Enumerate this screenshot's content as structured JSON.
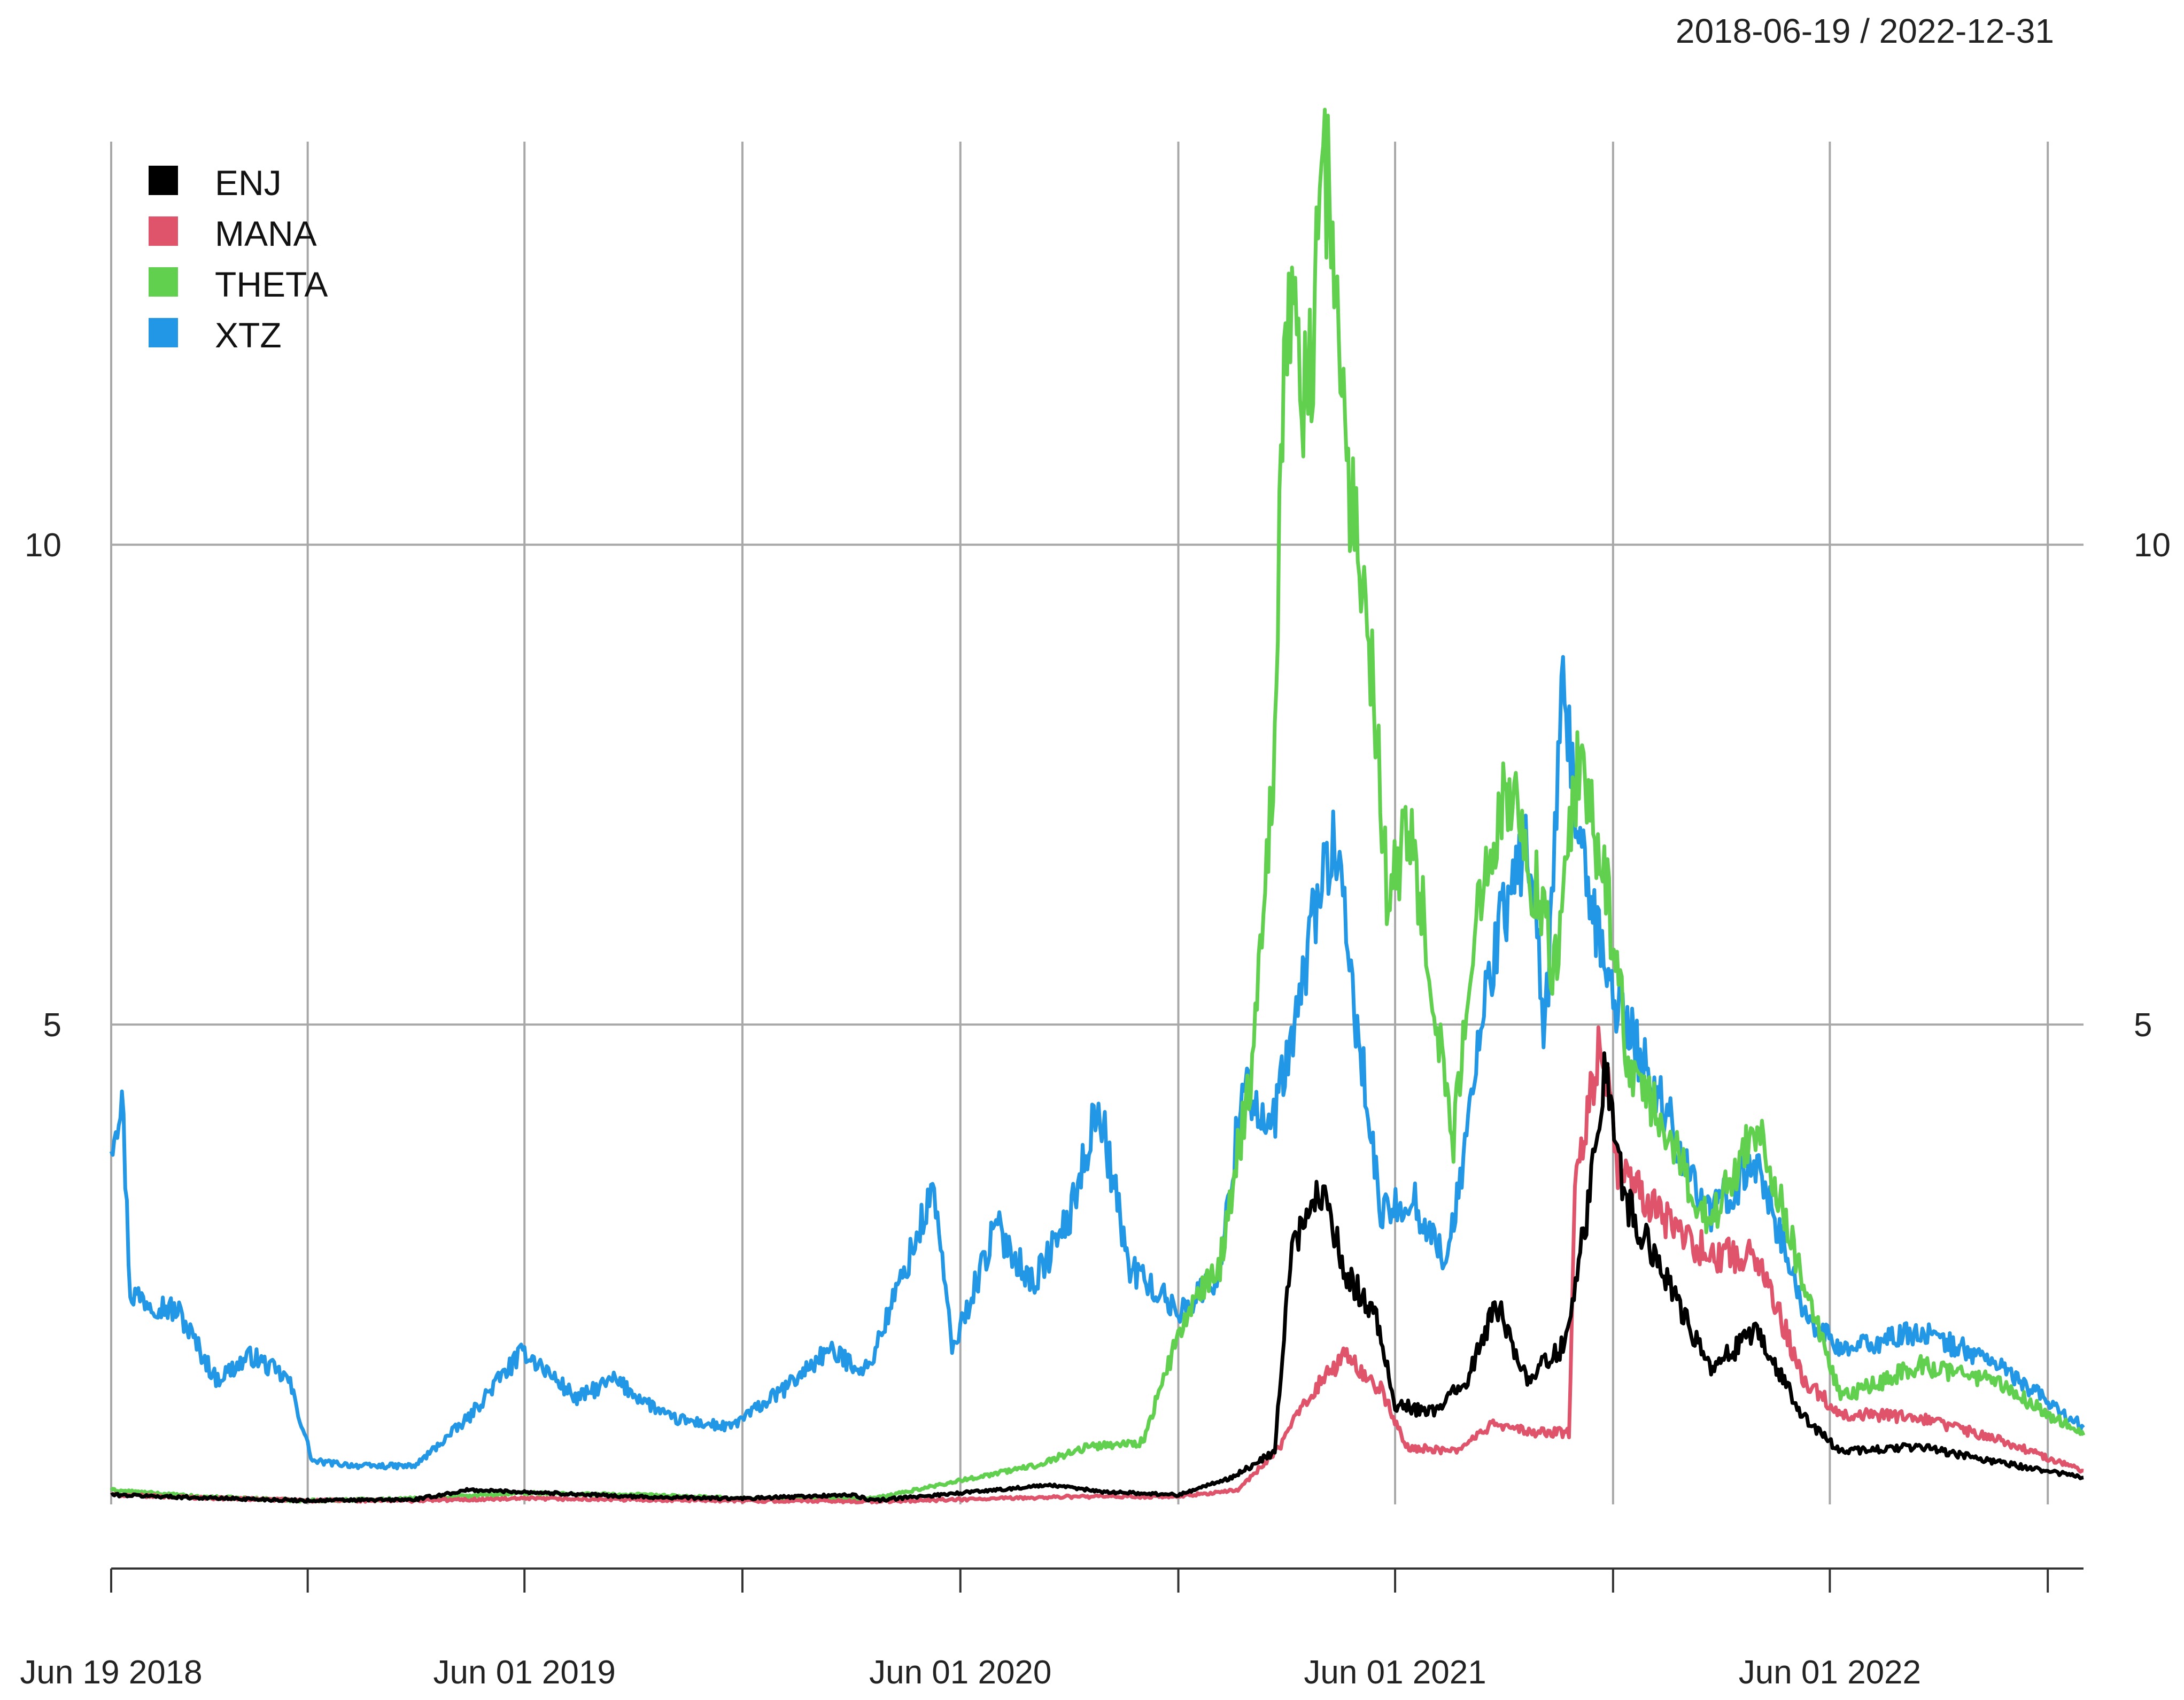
{
  "chart_data": {
    "type": "line",
    "title": "",
    "date_range": "2018-06-19 / 2022-12-31",
    "x_ticks": [
      "Jun 19 2018",
      "Jun 01 2019",
      "Jun 01 2020",
      "Jun 01 2021",
      "Jun 01 2022"
    ],
    "y_ticks": [
      "5",
      "10"
    ],
    "ylim": [
      0,
      14.2
    ],
    "xlim": [
      "2018-06-19",
      "2022-12-31"
    ],
    "grid": true,
    "legend_position": "top-left",
    "series": [
      {
        "name": "ENJ",
        "color": "#000000",
        "points": [
          [
            "2018-06-19",
            0.1
          ],
          [
            "2018-09-01",
            0.07
          ],
          [
            "2018-12-01",
            0.04
          ],
          [
            "2019-03-01",
            0.05
          ],
          [
            "2019-04-15",
            0.15
          ],
          [
            "2019-06-01",
            0.13
          ],
          [
            "2019-09-01",
            0.08
          ],
          [
            "2019-12-01",
            0.06
          ],
          [
            "2020-03-01",
            0.1
          ],
          [
            "2020-03-20",
            0.04
          ],
          [
            "2020-06-01",
            0.12
          ],
          [
            "2020-08-15",
            0.2
          ],
          [
            "2020-10-01",
            0.13
          ],
          [
            "2020-12-01",
            0.1
          ],
          [
            "2021-01-15",
            0.28
          ],
          [
            "2021-02-20",
            0.55
          ],
          [
            "2021-03-05",
            2.6
          ],
          [
            "2021-03-20",
            3.05
          ],
          [
            "2021-04-03",
            3.3
          ],
          [
            "2021-04-20",
            2.4
          ],
          [
            "2021-05-15",
            2.0
          ],
          [
            "2021-06-01",
            1.05
          ],
          [
            "2021-07-01",
            0.95
          ],
          [
            "2021-08-01",
            1.3
          ],
          [
            "2021-08-25",
            2.1
          ],
          [
            "2021-09-20",
            1.3
          ],
          [
            "2021-10-20",
            1.65
          ],
          [
            "2021-11-10",
            3.1
          ],
          [
            "2021-11-25",
            4.6
          ],
          [
            "2021-12-10",
            3.2
          ],
          [
            "2022-01-10",
            2.5
          ],
          [
            "2022-02-20",
            1.4
          ],
          [
            "2022-04-01",
            1.8
          ],
          [
            "2022-05-10",
            0.9
          ],
          [
            "2022-06-10",
            0.55
          ],
          [
            "2022-08-15",
            0.6
          ],
          [
            "2022-10-15",
            0.45
          ],
          [
            "2022-12-31",
            0.28
          ]
        ]
      },
      {
        "name": "MANA",
        "color": "#df536b",
        "points": [
          [
            "2018-06-19",
            0.1
          ],
          [
            "2018-09-01",
            0.07
          ],
          [
            "2018-12-01",
            0.04
          ],
          [
            "2019-03-01",
            0.04
          ],
          [
            "2019-06-01",
            0.06
          ],
          [
            "2019-12-01",
            0.04
          ],
          [
            "2020-03-20",
            0.03
          ],
          [
            "2020-06-01",
            0.05
          ],
          [
            "2020-09-01",
            0.08
          ],
          [
            "2020-12-01",
            0.08
          ],
          [
            "2021-01-20",
            0.15
          ],
          [
            "2021-02-25",
            0.6
          ],
          [
            "2021-03-15",
            1.05
          ],
          [
            "2021-04-05",
            1.35
          ],
          [
            "2021-04-20",
            1.55
          ],
          [
            "2021-05-20",
            1.2
          ],
          [
            "2021-06-10",
            0.6
          ],
          [
            "2021-07-20",
            0.55
          ],
          [
            "2021-08-25",
            0.85
          ],
          [
            "2021-09-20",
            0.75
          ],
          [
            "2021-10-25",
            0.75
          ],
          [
            "2021-10-30",
            3.2
          ],
          [
            "2021-11-20",
            4.9
          ],
          [
            "2021-12-05",
            3.5
          ],
          [
            "2022-01-10",
            3.0
          ],
          [
            "2022-02-20",
            2.6
          ],
          [
            "2022-04-01",
            2.6
          ],
          [
            "2022-05-10",
            1.3
          ],
          [
            "2022-06-10",
            0.95
          ],
          [
            "2022-08-15",
            0.9
          ],
          [
            "2022-10-15",
            0.7
          ],
          [
            "2022-12-31",
            0.35
          ]
        ]
      },
      {
        "name": "THETA",
        "color": "#61d04f",
        "points": [
          [
            "2018-06-19",
            0.15
          ],
          [
            "2018-09-01",
            0.08
          ],
          [
            "2018-12-01",
            0.04
          ],
          [
            "2019-03-01",
            0.06
          ],
          [
            "2019-06-01",
            0.12
          ],
          [
            "2019-09-01",
            0.1
          ],
          [
            "2019-12-01",
            0.06
          ],
          [
            "2020-03-20",
            0.06
          ],
          [
            "2020-06-01",
            0.25
          ],
          [
            "2020-08-01",
            0.4
          ],
          [
            "2020-09-15",
            0.6
          ],
          [
            "2020-11-01",
            0.65
          ],
          [
            "2020-12-05",
            1.9
          ],
          [
            "2021-01-05",
            2.5
          ],
          [
            "2021-02-01",
            4.6
          ],
          [
            "2021-02-20",
            8.0
          ],
          [
            "2021-03-01",
            12.6
          ],
          [
            "2021-03-20",
            11.5
          ],
          [
            "2021-04-03",
            14.2
          ],
          [
            "2021-04-20",
            11.0
          ],
          [
            "2021-05-10",
            9.2
          ],
          [
            "2021-05-25",
            6.5
          ],
          [
            "2021-06-15",
            7.0
          ],
          [
            "2021-07-01",
            5.5
          ],
          [
            "2021-07-20",
            3.8
          ],
          [
            "2021-08-15",
            6.8
          ],
          [
            "2021-09-05",
            7.5
          ],
          [
            "2021-09-25",
            6.5
          ],
          [
            "2021-10-15",
            5.5
          ],
          [
            "2021-11-01",
            7.7
          ],
          [
            "2021-11-25",
            6.5
          ],
          [
            "2021-12-15",
            4.5
          ],
          [
            "2022-01-10",
            4.0
          ],
          [
            "2022-02-20",
            2.9
          ],
          [
            "2022-04-01",
            4.0
          ],
          [
            "2022-05-10",
            2.3
          ],
          [
            "2022-06-10",
            1.1
          ],
          [
            "2022-08-15",
            1.45
          ],
          [
            "2022-10-15",
            1.3
          ],
          [
            "2022-12-31",
            0.72
          ]
        ]
      },
      {
        "name": "XTZ",
        "color": "#2297e6",
        "points": [
          [
            "2018-06-19",
            3.8
          ],
          [
            "2018-06-28",
            4.3
          ],
          [
            "2018-07-05",
            2.2
          ],
          [
            "2018-08-15",
            2.0
          ],
          [
            "2018-09-15",
            1.3
          ],
          [
            "2018-10-15",
            1.55
          ],
          [
            "2018-11-15",
            1.3
          ],
          [
            "2018-12-05",
            0.45
          ],
          [
            "2019-01-15",
            0.4
          ],
          [
            "2019-03-01",
            0.4
          ],
          [
            "2019-04-15",
            0.9
          ],
          [
            "2019-05-10",
            1.3
          ],
          [
            "2019-06-01",
            1.6
          ],
          [
            "2019-07-15",
            1.1
          ],
          [
            "2019-08-15",
            1.3
          ],
          [
            "2019-10-01",
            0.9
          ],
          [
            "2019-11-20",
            0.8
          ],
          [
            "2020-01-05",
            1.2
          ],
          [
            "2020-02-10",
            1.6
          ],
          [
            "2020-03-15",
            1.4
          ],
          [
            "2020-04-20",
            2.6
          ],
          [
            "2020-05-10",
            3.3
          ],
          [
            "2020-05-25",
            1.6
          ],
          [
            "2020-07-01",
            2.9
          ],
          [
            "2020-08-01",
            2.3
          ],
          [
            "2020-09-01",
            3.0
          ],
          [
            "2020-09-25",
            4.2
          ],
          [
            "2020-10-20",
            2.5
          ],
          [
            "2020-12-01",
            2.0
          ],
          [
            "2021-01-05",
            2.4
          ],
          [
            "2021-01-25",
            4.5
          ],
          [
            "2021-02-15",
            3.8
          ],
          [
            "2021-03-10",
            5.0
          ],
          [
            "2021-03-25",
            6.2
          ],
          [
            "2021-04-10",
            6.9
          ],
          [
            "2021-04-25",
            5.5
          ],
          [
            "2021-05-20",
            3.0
          ],
          [
            "2021-06-15",
            3.2
          ],
          [
            "2021-07-15",
            2.5
          ],
          [
            "2021-08-20",
            5.6
          ],
          [
            "2021-09-20",
            7.0
          ],
          [
            "2021-10-05",
            4.9
          ],
          [
            "2021-10-20",
            8.4
          ],
          [
            "2021-11-10",
            6.2
          ],
          [
            "2021-12-05",
            5.2
          ],
          [
            "2022-01-10",
            4.2
          ],
          [
            "2022-02-20",
            3.0
          ],
          [
            "2022-04-01",
            3.6
          ],
          [
            "2022-05-10",
            2.0
          ],
          [
            "2022-06-10",
            1.6
          ],
          [
            "2022-08-15",
            1.8
          ],
          [
            "2022-10-15",
            1.5
          ],
          [
            "2022-12-31",
            0.8
          ]
        ]
      }
    ]
  }
}
